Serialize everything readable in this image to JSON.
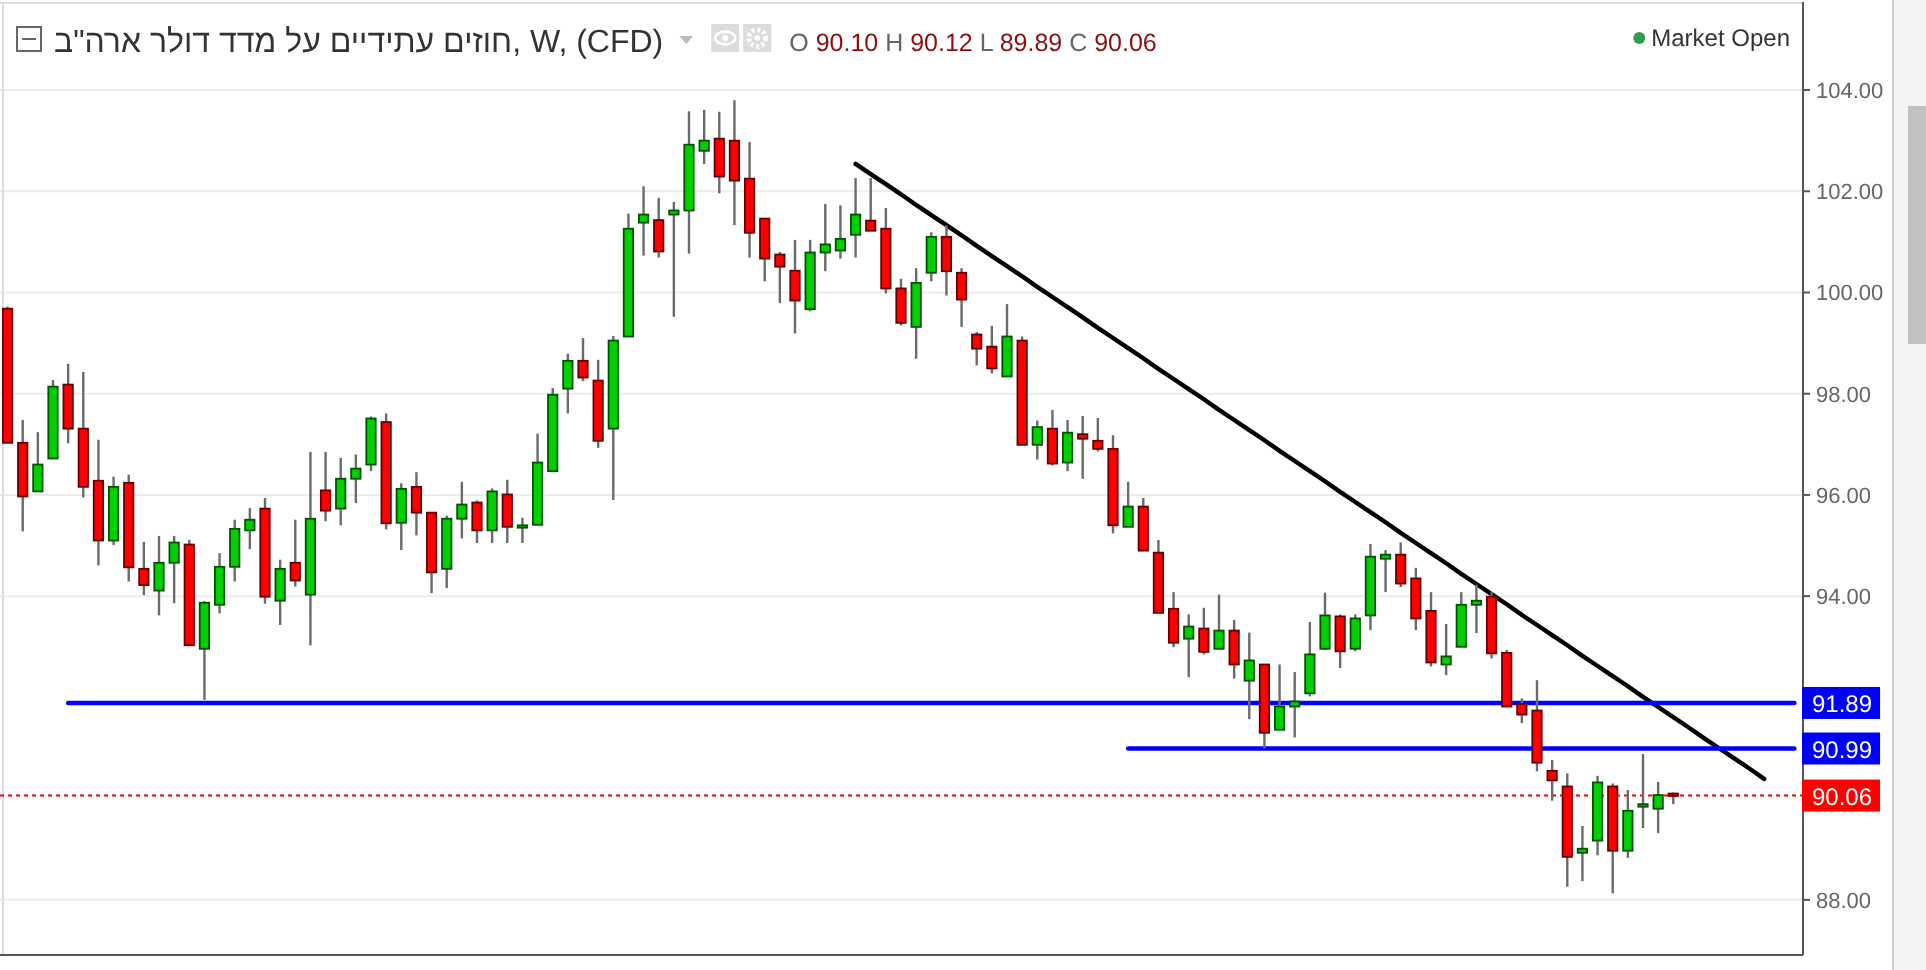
{
  "chart_data": {
    "type": "candlestick",
    "title": "חוזים עתידיים על מדד דולר ארה\"ב, W, (CFD)",
    "subtitle": "O 90.10 H 90.12 L 89.89 C 90.06",
    "annotations": [
      "Market Open"
    ],
    "categories": [
      null,
      null,
      null,
      null,
      null,
      null,
      null,
      null,
      null,
      null,
      null,
      null,
      null,
      null,
      null,
      null,
      null,
      null,
      null,
      null,
      null,
      null,
      null,
      null,
      null,
      null,
      null,
      null,
      null,
      null,
      null,
      null,
      null,
      null,
      null,
      null,
      null,
      null,
      null,
      null,
      null,
      null,
      null,
      null,
      null,
      null,
      null,
      null,
      null,
      null,
      null,
      null,
      null,
      null,
      null,
      null,
      null,
      null,
      null,
      null,
      null,
      null,
      null,
      null,
      null,
      null,
      null,
      null,
      null,
      null,
      null,
      null,
      null,
      null,
      null,
      null,
      null,
      null,
      null,
      null,
      null,
      null,
      null,
      null,
      null,
      null,
      null,
      null,
      null,
      null,
      null,
      null,
      null,
      null,
      null,
      null,
      null,
      null,
      null,
      null,
      null,
      null,
      null,
      null,
      null,
      null,
      null,
      null,
      null,
      null,
      null,
      null,
      null,
      null,
      null,
      null,
      null,
      null,
      null
    ],
    "ohlc": [
      [
        99.68,
        99.72,
        97.03,
        97.03
      ],
      [
        97.03,
        97.48,
        95.28,
        95.97
      ],
      [
        96.07,
        97.24,
        96.07,
        96.6
      ],
      [
        96.72,
        98.27,
        96.72,
        98.14
      ],
      [
        98.18,
        98.59,
        97.02,
        97.31
      ],
      [
        97.31,
        98.43,
        95.95,
        96.16
      ],
      [
        96.28,
        97.09,
        94.61,
        95.1
      ],
      [
        95.1,
        96.36,
        95.01,
        96.16
      ],
      [
        96.24,
        96.4,
        94.29,
        94.57
      ],
      [
        94.54,
        95.07,
        94.02,
        94.22
      ],
      [
        94.11,
        95.19,
        93.62,
        94.66
      ],
      [
        94.66,
        95.19,
        93.86,
        95.06
      ],
      [
        95.02,
        95.11,
        93.03,
        93.03
      ],
      [
        92.96,
        93.9,
        91.95,
        93.87
      ],
      [
        93.83,
        94.85,
        93.66,
        94.58
      ],
      [
        94.58,
        95.51,
        94.29,
        95.33
      ],
      [
        95.3,
        95.74,
        94.93,
        95.51
      ],
      [
        95.73,
        95.94,
        93.85,
        93.99
      ],
      [
        93.91,
        94.72,
        93.43,
        94.54
      ],
      [
        94.66,
        95.51,
        94.19,
        94.31
      ],
      [
        94.03,
        96.85,
        93.03,
        95.53
      ],
      [
        96.09,
        96.85,
        95.48,
        95.69
      ],
      [
        95.73,
        96.73,
        95.4,
        96.32
      ],
      [
        96.32,
        96.8,
        95.84,
        96.52
      ],
      [
        96.6,
        97.55,
        96.47,
        97.51
      ],
      [
        97.44,
        97.61,
        95.32,
        95.44
      ],
      [
        95.45,
        96.23,
        94.91,
        96.12
      ],
      [
        96.16,
        96.45,
        95.2,
        95.65
      ],
      [
        95.65,
        95.65,
        94.06,
        94.47
      ],
      [
        94.54,
        95.59,
        94.16,
        95.53
      ],
      [
        95.53,
        96.26,
        95.14,
        95.81
      ],
      [
        95.85,
        95.89,
        95.05,
        95.3
      ],
      [
        95.3,
        96.13,
        95.05,
        96.07
      ],
      [
        96.01,
        96.3,
        95.05,
        95.37
      ],
      [
        95.36,
        95.55,
        95.05,
        95.4
      ],
      [
        95.41,
        97.21,
        95.41,
        96.64
      ],
      [
        96.47,
        98.11,
        96.47,
        97.98
      ],
      [
        98.1,
        98.79,
        97.61,
        98.65
      ],
      [
        98.65,
        99.1,
        98.25,
        98.32
      ],
      [
        98.26,
        98.67,
        96.93,
        97.07
      ],
      [
        97.31,
        99.14,
        95.9,
        99.05
      ],
      [
        99.13,
        101.56,
        99.13,
        101.26
      ],
      [
        101.38,
        102.1,
        100.73,
        101.54
      ],
      [
        101.43,
        101.87,
        100.69,
        100.81
      ],
      [
        101.54,
        101.79,
        99.52,
        101.62
      ],
      [
        101.62,
        103.58,
        100.77,
        102.92
      ],
      [
        102.8,
        103.61,
        102.54,
        103.0
      ],
      [
        103.04,
        103.57,
        101.96,
        102.29
      ],
      [
        103.0,
        103.8,
        101.33,
        102.21
      ],
      [
        102.25,
        102.97,
        100.69,
        101.18
      ],
      [
        101.46,
        101.46,
        100.22,
        100.67
      ],
      [
        100.75,
        100.8,
        99.79,
        100.51
      ],
      [
        100.43,
        101.04,
        99.19,
        99.84
      ],
      [
        99.67,
        101.04,
        99.63,
        100.79
      ],
      [
        100.79,
        101.75,
        100.42,
        100.95
      ],
      [
        100.83,
        101.72,
        100.67,
        101.06
      ],
      [
        101.14,
        102.26,
        100.69,
        101.54
      ],
      [
        101.42,
        102.26,
        101.22,
        101.22
      ],
      [
        101.26,
        101.67,
        99.98,
        100.08
      ],
      [
        100.08,
        100.27,
        99.35,
        99.4
      ],
      [
        99.32,
        100.48,
        98.69,
        100.19
      ],
      [
        100.39,
        101.19,
        100.22,
        101.1
      ],
      [
        101.1,
        101.33,
        99.94,
        100.42
      ],
      [
        100.39,
        100.48,
        99.32,
        99.86
      ],
      [
        99.17,
        99.22,
        98.56,
        98.89
      ],
      [
        98.93,
        99.34,
        98.4,
        98.5
      ],
      [
        98.34,
        99.77,
        98.34,
        99.13
      ],
      [
        99.05,
        99.13,
        96.99,
        96.99
      ],
      [
        96.99,
        97.47,
        96.7,
        97.34
      ],
      [
        97.31,
        97.68,
        96.58,
        96.62
      ],
      [
        96.64,
        97.48,
        96.47,
        97.23
      ],
      [
        97.2,
        97.56,
        96.32,
        97.11
      ],
      [
        97.07,
        97.52,
        96.86,
        96.91
      ],
      [
        96.91,
        97.18,
        95.24,
        95.4
      ],
      [
        95.37,
        96.26,
        95.37,
        95.77
      ],
      [
        95.77,
        95.94,
        94.9,
        94.9
      ],
      [
        94.86,
        95.11,
        93.67,
        93.67
      ],
      [
        93.75,
        94.08,
        92.99,
        93.08
      ],
      [
        93.16,
        93.64,
        92.4,
        93.4
      ],
      [
        93.36,
        93.77,
        92.85,
        92.9
      ],
      [
        92.96,
        94.03,
        92.96,
        93.32
      ],
      [
        93.32,
        93.53,
        92.37,
        92.65
      ],
      [
        92.33,
        93.28,
        91.57,
        92.73
      ],
      [
        92.65,
        92.65,
        90.99,
        91.3
      ],
      [
        91.36,
        92.65,
        91.36,
        91.82
      ],
      [
        91.82,
        92.5,
        91.21,
        91.92
      ],
      [
        92.08,
        93.49,
        92.02,
        92.85
      ],
      [
        92.96,
        94.07,
        92.94,
        93.62
      ],
      [
        93.6,
        93.64,
        92.58,
        92.91
      ],
      [
        92.96,
        93.64,
        92.91,
        93.56
      ],
      [
        93.62,
        95.03,
        93.33,
        94.78
      ],
      [
        94.74,
        94.91,
        94.08,
        94.82
      ],
      [
        94.82,
        95.06,
        94.18,
        94.25
      ],
      [
        94.35,
        94.56,
        93.33,
        93.56
      ],
      [
        93.71,
        94.08,
        92.61,
        92.69
      ],
      [
        92.65,
        93.45,
        92.44,
        92.81
      ],
      [
        93.0,
        94.08,
        93.0,
        93.83
      ],
      [
        93.83,
        94.23,
        93.27,
        93.91
      ],
      [
        93.99,
        94.08,
        92.77,
        92.87
      ],
      [
        92.88,
        92.94,
        91.82,
        91.82
      ],
      [
        91.87,
        91.98,
        91.49,
        91.66
      ],
      [
        91.74,
        92.34,
        90.54,
        90.71
      ],
      [
        90.55,
        90.76,
        89.96,
        90.36
      ],
      [
        90.24,
        90.5,
        88.26,
        88.85
      ],
      [
        88.93,
        89.46,
        88.37,
        89.01
      ],
      [
        89.17,
        90.45,
        88.88,
        90.32
      ],
      [
        90.24,
        90.3,
        88.13,
        88.97
      ],
      [
        88.97,
        90.17,
        88.83,
        89.76
      ],
      [
        89.84,
        90.88,
        89.42,
        89.89
      ],
      [
        89.8,
        90.33,
        89.32,
        90.07
      ],
      [
        90.1,
        90.12,
        89.89,
        90.06
      ],
      null,
      null,
      null,
      null,
      null,
      null,
      null,
      null
    ],
    "colors": [
      "#ff0000",
      "#ff0000",
      "#00d000",
      "#00d000",
      "#ff0000",
      "#ff0000",
      "#ff0000",
      "#00d000",
      "#ff0000",
      "#ff0000",
      "#00d000",
      "#00d000",
      "#ff0000",
      "#00d000",
      "#00d000",
      "#00d000",
      "#00d000",
      "#ff0000",
      "#00d000",
      "#ff0000",
      "#00d000",
      "#ff0000",
      "#00d000",
      "#00d000",
      "#00d000",
      "#ff0000",
      "#00d000",
      "#ff0000",
      "#ff0000",
      "#00d000",
      "#00d000",
      "#ff0000",
      "#00d000",
      "#ff0000",
      "#00d000",
      "#00d000",
      "#00d000",
      "#00d000",
      "#ff0000",
      "#ff0000",
      "#00d000",
      "#00d000",
      "#00d000",
      "#ff0000",
      "#00d000",
      "#00d000",
      "#00d000",
      "#ff0000",
      "#ff0000",
      "#ff0000",
      "#ff0000",
      "#ff0000",
      "#ff0000",
      "#00d000",
      "#00d000",
      "#00d000",
      "#00d000",
      "#ff0000",
      "#ff0000",
      "#ff0000",
      "#00d000",
      "#00d000",
      "#ff0000",
      "#ff0000",
      "#ff0000",
      "#ff0000",
      "#00d000",
      "#ff0000",
      "#00d000",
      "#ff0000",
      "#00d000",
      "#ff0000",
      "#ff0000",
      "#ff0000",
      "#00d000",
      "#ff0000",
      "#ff0000",
      "#ff0000",
      "#00d000",
      "#ff0000",
      "#00d000",
      "#ff0000",
      "#00d000",
      "#ff0000",
      "#00d000",
      "#00d000",
      "#00d000",
      "#00d000",
      "#ff0000",
      "#00d000",
      "#00d000",
      "#00d000",
      "#ff0000",
      "#ff0000",
      "#ff0000",
      "#00d000",
      "#00d000",
      "#00d000",
      "#ff0000",
      "#ff0000",
      "#ff0000",
      "#ff0000",
      "#ff0000",
      "#ff0000",
      "#00d000",
      "#00d000",
      "#ff0000",
      "#00d000",
      "#00d000",
      "#00d000",
      "#ff0000",
      null,
      null,
      null,
      null,
      null,
      null,
      null,
      null
    ],
    "series": [
      {
        "type": "line",
        "color": "#000000",
        "values": [
          null,
          null,
          null,
          null,
          null,
          null,
          null,
          null,
          null,
          null,
          null,
          null,
          null,
          null,
          null,
          null,
          null,
          null,
          null,
          null,
          null,
          null,
          null,
          null,
          null,
          null,
          null,
          null,
          null,
          null,
          null,
          null,
          null,
          null,
          null,
          null,
          null,
          null,
          null,
          null,
          null,
          null,
          null,
          null,
          null,
          null,
          null,
          null,
          null,
          null,
          null,
          null,
          null,
          null,
          null,
          null,
          102.54,
          102.34,
          102.14,
          101.94,
          101.73,
          101.53,
          101.33,
          101.13,
          100.92,
          100.72,
          100.52,
          100.32,
          100.11,
          99.91,
          99.71,
          99.51,
          99.3,
          99.1,
          98.9,
          98.7,
          98.49,
          98.29,
          98.09,
          97.89,
          97.68,
          97.48,
          97.28,
          97.08,
          96.87,
          96.67,
          96.47,
          96.27,
          96.06,
          95.86,
          95.66,
          95.46,
          95.25,
          95.05,
          94.85,
          94.65,
          94.44,
          94.24,
          94.04,
          93.84,
          93.63,
          93.43,
          93.23,
          93.03,
          92.82,
          92.62,
          92.42,
          92.22,
          92.01,
          91.81,
          91.61,
          91.41,
          91.2,
          91.0,
          90.8,
          90.6,
          90.39,
          null,
          null
        ]
      },
      {
        "type": "line",
        "color": "#0000ff",
        "values": [
          null,
          null,
          null,
          null,
          91.89,
          91.89,
          91.89,
          91.89,
          91.89,
          91.89,
          91.89,
          91.89,
          91.89,
          91.89,
          91.89,
          91.89,
          91.89,
          91.89,
          91.89,
          91.89,
          91.89,
          91.89,
          91.89,
          91.89,
          91.89,
          91.89,
          91.89,
          91.89,
          91.89,
          91.89,
          91.89,
          91.89,
          91.89,
          91.89,
          91.89,
          91.89,
          91.89,
          91.89,
          91.89,
          91.89,
          91.89,
          91.89,
          91.89,
          91.89,
          91.89,
          91.89,
          91.89,
          91.89,
          91.89,
          91.89,
          91.89,
          91.89,
          91.89,
          91.89,
          91.89,
          91.89,
          91.89,
          91.89,
          91.89,
          91.89,
          91.89,
          91.89,
          91.89,
          91.89,
          91.89,
          91.89,
          91.89,
          91.89,
          91.89,
          91.89,
          91.89,
          91.89,
          91.89,
          91.89,
          91.89,
          91.89,
          91.89,
          91.89,
          91.89,
          91.89,
          91.89,
          91.89,
          91.89,
          91.89,
          91.89,
          91.89,
          91.89,
          91.89,
          91.89,
          91.89,
          91.89,
          91.89,
          91.89,
          91.89,
          91.89,
          91.89,
          91.89,
          91.89,
          91.89,
          91.89,
          91.89,
          91.89,
          91.89,
          91.89,
          91.89,
          91.89,
          91.89,
          91.89,
          91.89,
          91.89,
          91.89,
          91.89,
          91.89,
          91.89,
          91.89,
          91.89,
          91.89,
          91.89,
          91.89
        ],
        "value_labels": [
          null,
          null,
          null,
          null,
          null,
          null,
          null,
          null,
          null,
          null,
          null,
          null,
          null,
          null,
          null,
          null,
          null,
          null,
          null,
          null,
          null,
          null,
          null,
          null,
          null,
          null,
          null,
          null,
          null,
          null,
          null,
          null,
          null,
          null,
          null,
          null,
          null,
          null,
          null,
          null,
          null,
          null,
          null,
          null,
          null,
          null,
          null,
          null,
          null,
          null,
          null,
          null,
          null,
          null,
          null,
          null,
          null,
          null,
          null,
          null,
          null,
          null,
          null,
          null,
          null,
          null,
          null,
          null,
          null,
          null,
          null,
          null,
          null,
          null,
          null,
          null,
          null,
          null,
          null,
          null,
          null,
          null,
          null,
          null,
          null,
          null,
          null,
          null,
          null,
          null,
          null,
          null,
          null,
          null,
          null,
          null,
          null,
          null,
          null,
          null,
          null,
          null,
          null,
          null,
          null,
          null,
          null,
          null,
          null,
          null,
          null,
          null,
          null,
          null,
          null,
          null,
          null,
          null,
          "91.89"
        ]
      },
      {
        "type": "line",
        "color": "#0000ff",
        "values": [
          null,
          null,
          null,
          null,
          null,
          null,
          null,
          null,
          null,
          null,
          null,
          null,
          null,
          null,
          null,
          null,
          null,
          null,
          null,
          null,
          null,
          null,
          null,
          null,
          null,
          null,
          null,
          null,
          null,
          null,
          null,
          null,
          null,
          null,
          null,
          null,
          null,
          null,
          null,
          null,
          null,
          null,
          null,
          null,
          null,
          null,
          null,
          null,
          null,
          null,
          null,
          null,
          null,
          null,
          null,
          null,
          null,
          null,
          null,
          null,
          null,
          null,
          null,
          null,
          null,
          null,
          null,
          null,
          null,
          null,
          null,
          null,
          null,
          null,
          90.99,
          90.99,
          90.99,
          90.99,
          90.99,
          90.99,
          90.99,
          90.99,
          90.99,
          90.99,
          90.99,
          90.99,
          90.99,
          90.99,
          90.99,
          90.99,
          90.99,
          90.99,
          90.99,
          90.99,
          90.99,
          90.99,
          90.99,
          90.99,
          90.99,
          90.99,
          90.99,
          90.99,
          90.99,
          90.99,
          90.99,
          90.99,
          90.99,
          90.99,
          90.99,
          90.99,
          90.99,
          90.99,
          90.99,
          90.99,
          90.99,
          90.99,
          90.99,
          90.99,
          90.99
        ],
        "value_labels": [
          null,
          null,
          null,
          null,
          null,
          null,
          null,
          null,
          null,
          null,
          null,
          null,
          null,
          null,
          null,
          null,
          null,
          null,
          null,
          null,
          null,
          null,
          null,
          null,
          null,
          null,
          null,
          null,
          null,
          null,
          null,
          null,
          null,
          null,
          null,
          null,
          null,
          null,
          null,
          null,
          null,
          null,
          null,
          null,
          null,
          null,
          null,
          null,
          null,
          null,
          null,
          null,
          null,
          null,
          null,
          null,
          null,
          null,
          null,
          null,
          null,
          null,
          null,
          null,
          null,
          null,
          null,
          null,
          null,
          null,
          null,
          null,
          null,
          null,
          null,
          null,
          null,
          null,
          null,
          null,
          null,
          null,
          null,
          null,
          null,
          null,
          null,
          null,
          null,
          null,
          null,
          null,
          null,
          null,
          null,
          null,
          null,
          null,
          null,
          null,
          null,
          null,
          null,
          null,
          null,
          null,
          null,
          null,
          null,
          null,
          null,
          null,
          null,
          null,
          null,
          null,
          null,
          null,
          "90.99"
        ]
      }
    ],
    "ref_lines": [
      {
        "axis": "y",
        "value": 90.06,
        "label": "90.06",
        "color": "#ff0000",
        "line_style": "dotted"
      }
    ],
    "ylim": [
      86.93,
      105.7
    ],
    "yticks": [
      {
        "value": 88,
        "label": "88.00"
      },
      {
        "value": 94,
        "label": "94.00"
      },
      {
        "value": 96,
        "label": "96.00"
      },
      {
        "value": 98,
        "label": "98.00"
      },
      {
        "value": 100,
        "label": "100.00"
      },
      {
        "value": 102,
        "label": "102.00"
      },
      {
        "value": 104,
        "label": "104.00"
      }
    ],
    "grid": "y"
  }
}
